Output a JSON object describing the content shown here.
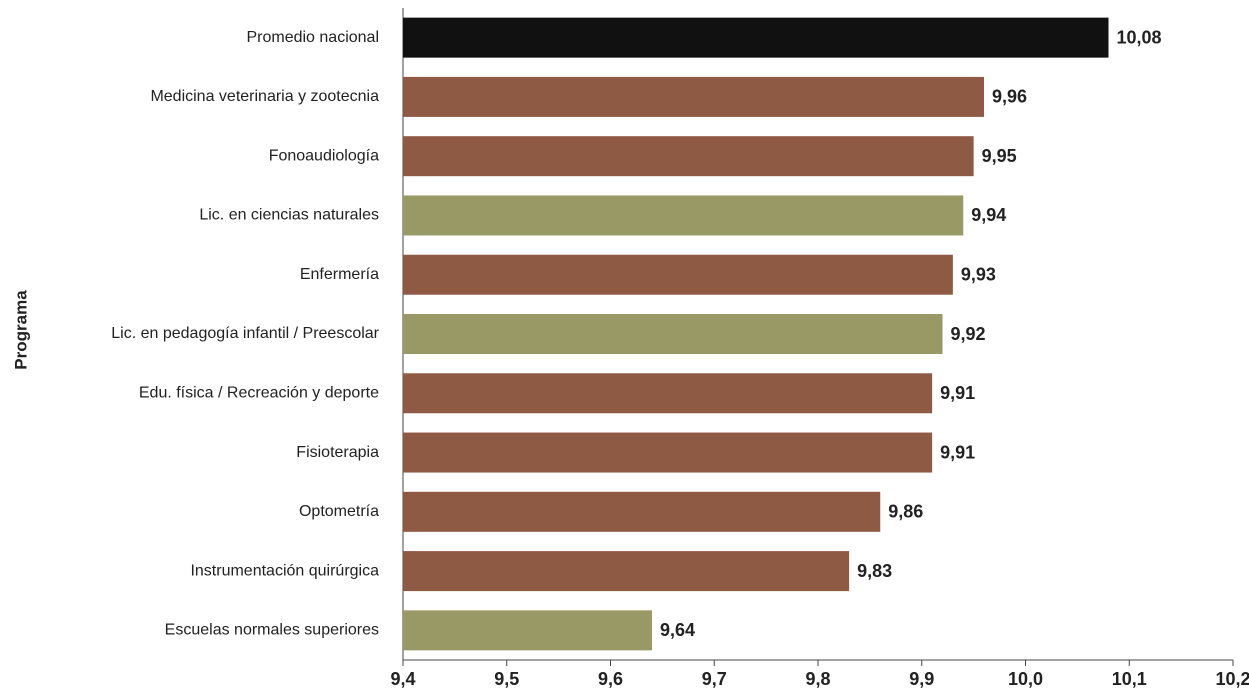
{
  "chart_data": {
    "type": "bar",
    "orientation": "horizontal",
    "y_label": "Programa",
    "categories": [
      "Promedio nacional",
      "Medicina veterinaria y zootecnia",
      "Fonoaudiología",
      "Lic. en ciencias naturales",
      "Enfermería",
      "Lic. en pedagogía infantil / Preescolar",
      "Edu. física / Recreación y deporte",
      "Fisioterapia",
      "Optometría",
      "Instrumentación quirúrgica",
      "Escuelas normales superiores"
    ],
    "values": [
      10.08,
      9.96,
      9.95,
      9.94,
      9.93,
      9.92,
      9.91,
      9.91,
      9.86,
      9.83,
      9.64
    ],
    "value_labels": [
      "10,08",
      "9,96",
      "9,95",
      "9,94",
      "9,93",
      "9,92",
      "9,91",
      "9,91",
      "9,86",
      "9,83",
      "9,64"
    ],
    "colors": [
      "#111111",
      "#8f5a44",
      "#8f5a44",
      "#999966",
      "#8f5a44",
      "#999966",
      "#8f5a44",
      "#8f5a44",
      "#8f5a44",
      "#8f5a44",
      "#999966"
    ],
    "xlim": [
      9.4,
      10.2
    ],
    "xticks": [
      {
        "value": 9.4,
        "label": "9,4"
      },
      {
        "value": 9.5,
        "label": "9,5"
      },
      {
        "value": 9.6,
        "label": "9,6"
      },
      {
        "value": 9.7,
        "label": "9,7"
      },
      {
        "value": 9.8,
        "label": "9,8"
      },
      {
        "value": 9.9,
        "label": "9,9"
      },
      {
        "value": 10.0,
        "label": "10,0"
      },
      {
        "value": 10.1,
        "label": "10,1"
      },
      {
        "value": 10.2,
        "label": "10,2"
      }
    ]
  }
}
